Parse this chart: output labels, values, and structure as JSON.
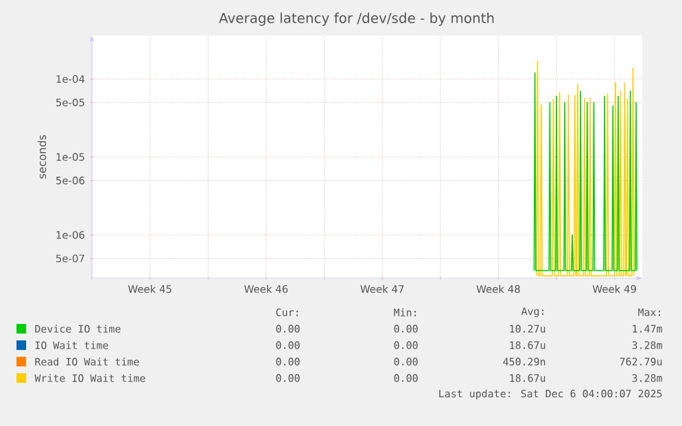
{
  "chart_data": {
    "type": "line",
    "title": "Average latency for /dev/sde - by month",
    "ylabel": "seconds",
    "log": "y",
    "grid": true,
    "legend": "bottom",
    "xlim": [
      "2025-11-03",
      "2025-12-06T04:00"
    ],
    "ylim": [
      2.8e-07,
      0.00036
    ],
    "xticks": [
      {
        "value": "2025-11-03",
        "label": null
      },
      {
        "value": "2025-11-06T12:00",
        "label": "Week 45"
      },
      {
        "value": "2025-11-10",
        "label": null
      },
      {
        "value": "2025-11-13T12:00",
        "label": "Week 46"
      },
      {
        "value": "2025-11-17",
        "label": null
      },
      {
        "value": "2025-11-20T12:00",
        "label": "Week 47"
      },
      {
        "value": "2025-11-24",
        "label": null
      },
      {
        "value": "2025-11-27T12:00",
        "label": "Week 48"
      },
      {
        "value": "2025-12-01",
        "label": null
      },
      {
        "value": "2025-12-04T12:00",
        "label": "Week 49"
      }
    ],
    "yticks": [
      {
        "value": 5e-07,
        "label": "5e-07"
      },
      {
        "value": 1e-06,
        "label": "1e-06"
      },
      {
        "value": 5e-06,
        "label": "5e-06"
      },
      {
        "value": 1e-05,
        "label": "1e-05"
      },
      {
        "value": 5e-05,
        "label": "5e-05"
      },
      {
        "value": 0.0001,
        "label": "1e-04"
      }
    ],
    "x": [
      "2025-11-29T19:12",
      "2025-11-29T20:38",
      "2025-11-29T22:05",
      "2025-11-30T00:29",
      "2025-11-30T01:55",
      "2025-11-30T03:22",
      "2025-11-30T18:00",
      "2025-11-30T19:26",
      "2025-11-30T20:53",
      "2025-12-01T03:07",
      "2025-12-01T04:34",
      "2025-12-01T06:00",
      "2025-12-01T15:50",
      "2025-12-01T17:17",
      "2025-12-01T18:43",
      "2025-12-02T01:12",
      "2025-12-02T02:38",
      "2025-12-02T04:05",
      "2025-12-02T05:17",
      "2025-12-02T06:43",
      "2025-12-02T08:10",
      "2025-12-02T15:07",
      "2025-12-02T16:34",
      "2025-12-02T18:00",
      "2025-12-02T23:17",
      "2025-12-03T00:43",
      "2025-12-03T02:10",
      "2025-12-04T00:29",
      "2025-12-04T01:55",
      "2025-12-04T03:22",
      "2025-12-04T12:00",
      "2025-12-04T13:26",
      "2025-12-04T14:53",
      "2025-12-04T19:12",
      "2025-12-04T20:38",
      "2025-12-04T22:05",
      "2025-12-05T01:12",
      "2025-12-05T02:38",
      "2025-12-05T04:05",
      "2025-12-05T05:17",
      "2025-12-05T06:43",
      "2025-12-05T08:10",
      "2025-12-05T13:12",
      "2025-12-05T14:38",
      "2025-12-05T16:05"
    ],
    "series": [
      {
        "name": "Device IO time",
        "color": "#00cc00",
        "x": [
          "2025-11-29T15:36",
          "2025-11-29T16:48",
          "2025-11-29T18:00",
          "2025-11-30T13:12",
          "2025-11-30T14:24",
          "2025-11-30T15:36",
          "2025-11-30T22:48",
          "2025-12-01T00:00",
          "2025-12-01T01:12",
          "2025-12-01T10:48",
          "2025-12-01T12:00",
          "2025-12-01T13:12",
          "2025-12-01T21:36",
          "2025-12-01T22:48",
          "2025-12-02T00:00",
          "2025-12-02T09:36",
          "2025-12-02T10:48",
          "2025-12-02T12:00",
          "2025-12-02T19:12",
          "2025-12-02T20:24",
          "2025-12-02T21:36",
          "2025-12-03T04:48",
          "2025-12-03T06:00",
          "2025-12-03T07:12",
          "2025-12-03T20:24",
          "2025-12-03T21:36",
          "2025-12-03T22:48",
          "2025-12-04T08:24",
          "2025-12-04T09:36",
          "2025-12-04T10:48",
          "2025-12-04T16:05",
          "2025-12-04T17:17",
          "2025-12-04T18:29",
          "2025-12-05T09:36",
          "2025-12-05T10:48",
          "2025-12-05T12:00",
          "2025-12-05T18:00",
          "2025-12-05T19:12",
          "2025-12-05T20:24"
        ],
        "values": [
          3.5e-07,
          0.00012,
          3.5e-07,
          3.5e-07,
          5e-05,
          3.5e-07,
          3.5e-07,
          6e-05,
          3.5e-07,
          3.5e-07,
          5e-05,
          3.5e-07,
          3.5e-07,
          1e-06,
          3.5e-07,
          3.5e-07,
          7e-05,
          3.5e-07,
          3.5e-07,
          5e-05,
          3.5e-07,
          3.5e-07,
          5e-05,
          3.5e-07,
          3.5e-07,
          6e-05,
          3.5e-07,
          3.5e-07,
          4.5e-05,
          3.5e-07,
          3.5e-07,
          6e-05,
          3.5e-07,
          3.5e-07,
          7e-05,
          3.5e-07,
          3.5e-07,
          5e-05,
          3.5e-07
        ]
      },
      {
        "name": "IO Wait time",
        "color": "#0066b3",
        "values": [
          null,
          null,
          null,
          null,
          null,
          null,
          null,
          null,
          null,
          null,
          null,
          null,
          null,
          null,
          null,
          null,
          null,
          null,
          null,
          null,
          null,
          null,
          null,
          null,
          null,
          null,
          null,
          null,
          null,
          null,
          null,
          null,
          null,
          null,
          null,
          null,
          null,
          null,
          null,
          null,
          null,
          null,
          null,
          null,
          null
        ]
      },
      {
        "name": "Read IO Wait time",
        "color": "#ff8000",
        "values": [
          null,
          null,
          null,
          null,
          null,
          null,
          null,
          null,
          null,
          null,
          null,
          null,
          null,
          null,
          null,
          null,
          null,
          null,
          null,
          null,
          null,
          null,
          null,
          null,
          null,
          null,
          null,
          null,
          null,
          null,
          null,
          null,
          null,
          null,
          null,
          null,
          null,
          null,
          null,
          null,
          null,
          null,
          null,
          null,
          null
        ]
      },
      {
        "name": "Write IO Wait time",
        "color": "#ffcc00",
        "values": [
          3e-07,
          0.000169,
          3e-07,
          3e-07,
          4.6e-05,
          3e-07,
          3e-07,
          5.5e-05,
          3e-07,
          3e-07,
          6.7e-05,
          3e-07,
          3e-07,
          6.2e-05,
          3e-07,
          3e-07,
          6.2e-05,
          3e-07,
          3e-07,
          8.5e-05,
          3e-07,
          3e-07,
          5.7e-05,
          3e-07,
          3e-07,
          5.7e-05,
          3e-07,
          3e-07,
          6.4e-05,
          3e-07,
          3e-07,
          8.9e-05,
          3e-07,
          3e-07,
          7e-05,
          3e-07,
          3e-07,
          8.9e-05,
          3e-07,
          3e-07,
          5.5e-05,
          3e-07,
          3e-07,
          0.000138,
          3e-07
        ]
      }
    ],
    "annotations": [
      "Cur:",
      "Min:",
      "Avg:",
      "Max:",
      "0.00",
      "0.00",
      "10.27u",
      "1.47m",
      "0.00",
      "0.00",
      "18.67u",
      "3.28m",
      "0.00",
      "0.00",
      "450.29n",
      "762.79u",
      "0.00",
      "0.00",
      "18.67u",
      "3.28m",
      "Last update: Sat Dec  6 04:00:07 2025"
    ]
  }
}
